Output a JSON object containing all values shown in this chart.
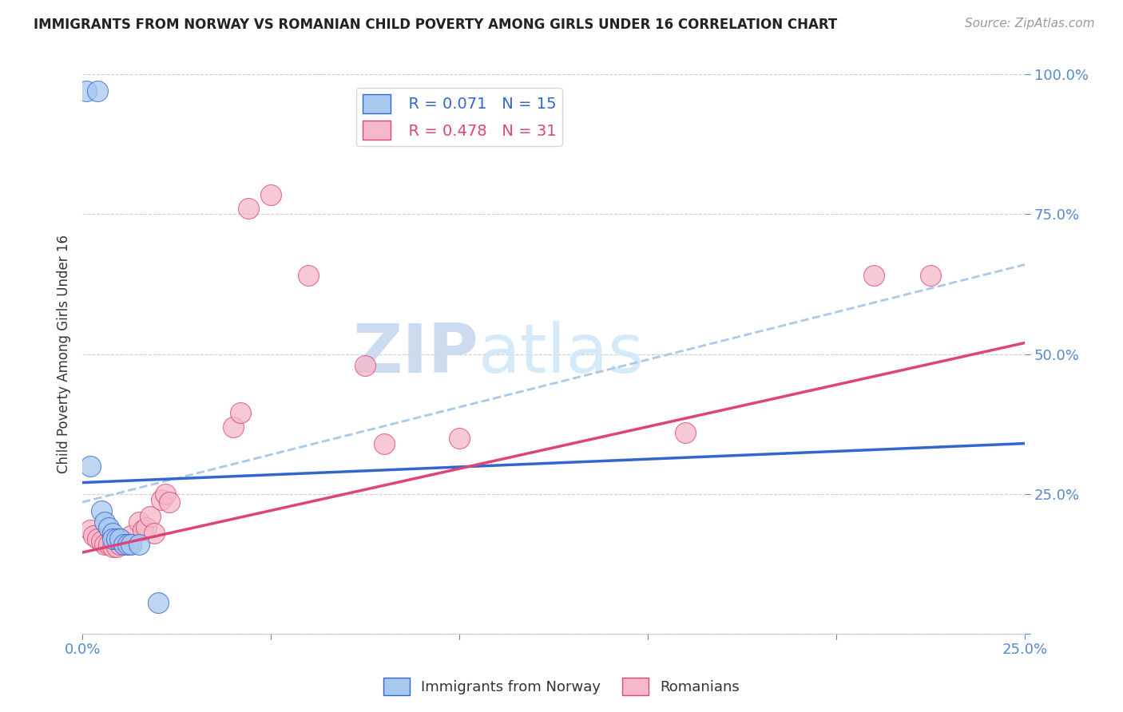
{
  "title": "IMMIGRANTS FROM NORWAY VS ROMANIAN CHILD POVERTY AMONG GIRLS UNDER 16 CORRELATION CHART",
  "source": "Source: ZipAtlas.com",
  "ylabel": "Child Poverty Among Girls Under 16",
  "xlim": [
    0.0,
    0.25
  ],
  "ylim": [
    0.0,
    1.0
  ],
  "xticks": [
    0.0,
    0.05,
    0.1,
    0.15,
    0.2,
    0.25
  ],
  "yticks": [
    0.0,
    0.25,
    0.5,
    0.75,
    1.0
  ],
  "background_color": "#ffffff",
  "legend_blue_r": "R = 0.071",
  "legend_blue_n": "N = 15",
  "legend_pink_r": "R = 0.478",
  "legend_pink_n": "N = 31",
  "blue_color": "#a8c8f0",
  "pink_color": "#f5b8c8",
  "blue_line_color": "#3366cc",
  "pink_line_color": "#dd4477",
  "dashed_line_color": "#aac8e8",
  "norway_points": [
    [
      0.001,
      0.97
    ],
    [
      0.004,
      0.97
    ],
    [
      0.002,
      0.3
    ],
    [
      0.005,
      0.22
    ],
    [
      0.006,
      0.2
    ],
    [
      0.007,
      0.19
    ],
    [
      0.008,
      0.18
    ],
    [
      0.008,
      0.17
    ],
    [
      0.009,
      0.17
    ],
    [
      0.01,
      0.17
    ],
    [
      0.011,
      0.16
    ],
    [
      0.012,
      0.16
    ],
    [
      0.013,
      0.16
    ],
    [
      0.015,
      0.16
    ],
    [
      0.02,
      0.055
    ]
  ],
  "romanian_points": [
    [
      0.002,
      0.185
    ],
    [
      0.003,
      0.175
    ],
    [
      0.004,
      0.17
    ],
    [
      0.005,
      0.165
    ],
    [
      0.006,
      0.16
    ],
    [
      0.007,
      0.16
    ],
    [
      0.008,
      0.155
    ],
    [
      0.009,
      0.155
    ],
    [
      0.01,
      0.16
    ],
    [
      0.011,
      0.165
    ],
    [
      0.012,
      0.16
    ],
    [
      0.013,
      0.175
    ],
    [
      0.015,
      0.2
    ],
    [
      0.016,
      0.185
    ],
    [
      0.017,
      0.19
    ],
    [
      0.018,
      0.21
    ],
    [
      0.019,
      0.18
    ],
    [
      0.021,
      0.24
    ],
    [
      0.022,
      0.25
    ],
    [
      0.023,
      0.235
    ],
    [
      0.04,
      0.37
    ],
    [
      0.042,
      0.395
    ],
    [
      0.044,
      0.76
    ],
    [
      0.05,
      0.785
    ],
    [
      0.06,
      0.64
    ],
    [
      0.075,
      0.48
    ],
    [
      0.08,
      0.34
    ],
    [
      0.1,
      0.35
    ],
    [
      0.16,
      0.36
    ],
    [
      0.21,
      0.64
    ],
    [
      0.225,
      0.64
    ]
  ],
  "blue_trend": [
    0.0,
    0.25,
    0.27,
    0.34
  ],
  "pink_trend": [
    0.0,
    0.25,
    0.145,
    0.52
  ],
  "dashed_trend": [
    0.0,
    0.25,
    0.235,
    0.66
  ]
}
